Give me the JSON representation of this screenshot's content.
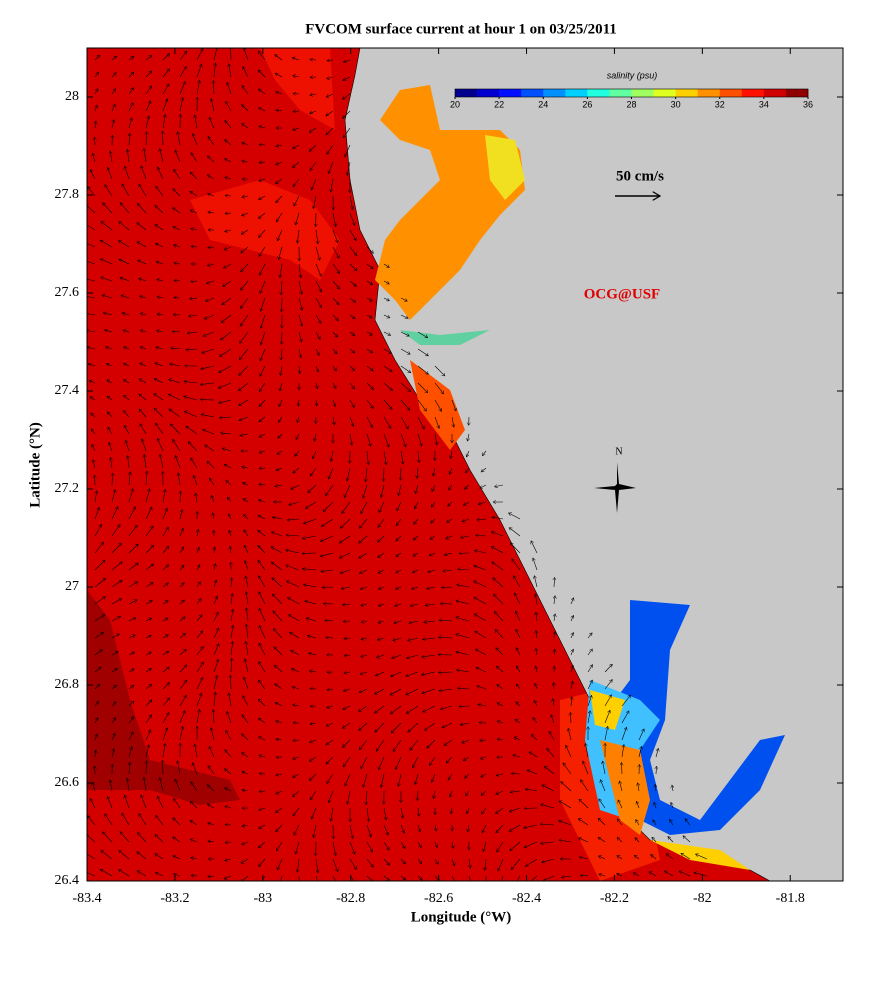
{
  "chart_data": {
    "type": "map",
    "title": "FVCOM surface current at hour 1 on 03/25/2011",
    "x_label": "Longitude (°W)",
    "y_label": "Latitude (°N)",
    "xlim": [
      -83.4,
      -81.68
    ],
    "ylim": [
      26.4,
      28.1
    ],
    "xticks": [
      -83.4,
      -83.2,
      -83,
      -82.8,
      -82.6,
      -82.4,
      -82.2,
      -82,
      -81.8
    ],
    "yticks": [
      26.4,
      26.6,
      26.8,
      27,
      27.2,
      27.4,
      27.6,
      27.8,
      28
    ],
    "colorbar": {
      "label": "salinity (psu)",
      "lim": [
        20,
        36
      ],
      "ticks": [
        20,
        22,
        24,
        26,
        28,
        30,
        32,
        34,
        36
      ],
      "colors": [
        "#00008f",
        "#0000cf",
        "#0010ff",
        "#0050ff",
        "#0090ff",
        "#00d0ff",
        "#20ffdf",
        "#60ff9f",
        "#a0ff60",
        "#dfff20",
        "#ffd000",
        "#ff9000",
        "#ff5000",
        "#ff1000",
        "#cf0000",
        "#8f0000"
      ]
    },
    "scale_label": "50 cm/s",
    "credit": "OCG@USF",
    "north_label": "N"
  }
}
